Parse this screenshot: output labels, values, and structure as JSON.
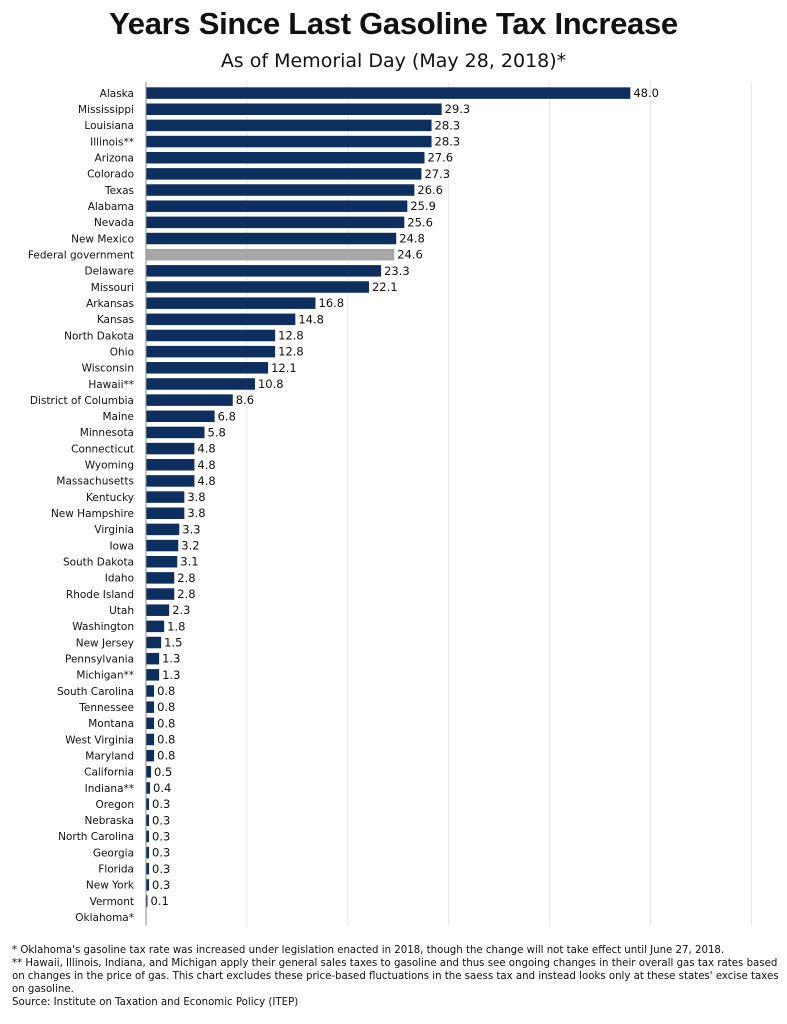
{
  "chart_data": {
    "type": "bar",
    "orientation": "horizontal",
    "title": "Years Since Last Gasoline Tax Increase",
    "subtitle": "As of Memorial Day (May 28, 2018)*",
    "categories": [
      "Alaska",
      "Mississippi",
      "Louisiana",
      "Illinois**",
      "Arizona",
      "Colorado",
      "Texas",
      "Alabama",
      "Nevada",
      "New Mexico",
      "Federal government",
      "Delaware",
      "Missouri",
      "Arkansas",
      "Kansas",
      "North Dakota",
      "Ohio",
      "Wisconsin",
      "Hawaii**",
      "District of Columbia",
      "Maine",
      "Minnesota",
      "Connecticut",
      "Wyoming",
      "Massachusetts",
      "Kentucky",
      "New Hampshire",
      "Virginia",
      "Iowa",
      "South Dakota",
      "Idaho",
      "Rhode Island",
      "Utah",
      "Washington",
      "New Jersey",
      "Pennsylvania",
      "Michigan**",
      "South Carolina",
      "Tennessee",
      "Montana",
      "West Virginia",
      "Maryland",
      "California",
      "Indiana**",
      "Oregon",
      "Nebraska",
      "North Carolina",
      "Georgia",
      "Florida",
      "New York",
      "Vermont",
      "Oklahoma*"
    ],
    "values": [
      48.0,
      29.3,
      28.3,
      28.3,
      27.6,
      27.3,
      26.6,
      25.9,
      25.6,
      24.8,
      24.6,
      23.3,
      22.1,
      16.8,
      14.8,
      12.8,
      12.8,
      12.1,
      10.8,
      8.6,
      6.8,
      5.8,
      4.8,
      4.8,
      4.8,
      3.8,
      3.8,
      3.3,
      3.2,
      3.1,
      2.8,
      2.8,
      2.3,
      1.8,
      1.5,
      1.3,
      1.3,
      0.8,
      0.8,
      0.8,
      0.8,
      0.8,
      0.5,
      0.4,
      0.3,
      0.3,
      0.3,
      0.3,
      0.3,
      0.3,
      0.1,
      null
    ],
    "value_labels": [
      "48.0",
      "29.3",
      "28.3",
      "28.3",
      "27.6",
      "27.3",
      "26.6",
      "25.9",
      "25.6",
      "24.8",
      "24.6",
      "23.3",
      "22.1",
      "16.8",
      "14.8",
      "12.8",
      "12.8",
      "12.1",
      "10.8",
      "8.6",
      "6.8",
      "5.8",
      "4.8",
      "4.8",
      "4.8",
      "3.8",
      "3.8",
      "3.3",
      "3.2",
      "3.1",
      "2.8",
      "2.8",
      "2.3",
      "1.8",
      "1.5",
      "1.3",
      "1.3",
      "0.8",
      "0.8",
      "0.8",
      "0.8",
      "0.8",
      "0.5",
      "0.4",
      "0.3",
      "0.3",
      "0.3",
      "0.3",
      "0.3",
      "0.3",
      "0.1",
      ""
    ],
    "highlight_category": "Federal government",
    "xlim": [
      0,
      60
    ],
    "grid": true,
    "colors": {
      "bar": "#0d2f5f",
      "highlight": "#a6a6a6",
      "grid": "#e6e6e6",
      "axis": "#888888"
    }
  },
  "notes": {
    "note1": "* Oklahoma's gasoline tax rate was increased under legislation enacted in 2018, though the change will not take effect until June 27, 2018.",
    "note2": "** Hawaii, Illinois, Indiana, and Michigan apply their general sales taxes to gasoline and thus see ongoing changes in their overall gas tax rates based on changes in the price of gas.  This chart excludes these price-based fluctuations in the saess tax and instead looks only at these states' excise taxes on gasoline.",
    "source": "Source: Institute on Taxation and Economic Policy (ITEP)"
  }
}
